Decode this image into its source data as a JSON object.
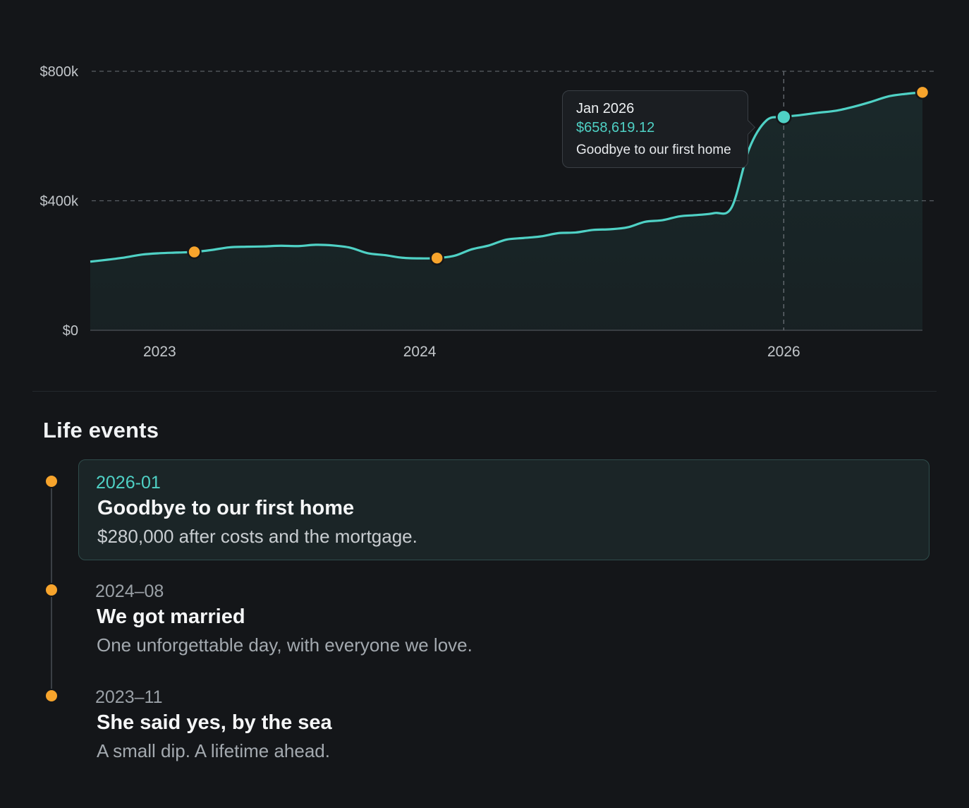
{
  "chart_data": {
    "type": "area",
    "x_start": "2022-09",
    "points": [
      [
        "2022-09",
        212000
      ],
      [
        "2022-10",
        218000
      ],
      [
        "2022-11",
        225000
      ],
      [
        "2022-12",
        234000
      ],
      [
        "2023-01",
        238000
      ],
      [
        "2023-02",
        240000
      ],
      [
        "2023-03",
        242000
      ],
      [
        "2023-04",
        248000
      ],
      [
        "2023-05",
        256000
      ],
      [
        "2023-06",
        258000
      ],
      [
        "2023-07",
        259000
      ],
      [
        "2023-08",
        261000
      ],
      [
        "2023-09",
        260000
      ],
      [
        "2023-10",
        264000
      ],
      [
        "2023-11",
        262000
      ],
      [
        "2023-12",
        255000
      ],
      [
        "2024-01",
        238000
      ],
      [
        "2024-02",
        232000
      ],
      [
        "2024-03",
        224000
      ],
      [
        "2024-04",
        222000
      ],
      [
        "2024-05",
        223000
      ],
      [
        "2024-06",
        230000
      ],
      [
        "2024-07",
        250000
      ],
      [
        "2024-08",
        262000
      ],
      [
        "2024-09",
        280000
      ],
      [
        "2024-10",
        285000
      ],
      [
        "2024-11",
        290000
      ],
      [
        "2024-12",
        300000
      ],
      [
        "2025-01",
        302000
      ],
      [
        "2025-02",
        310000
      ],
      [
        "2025-03",
        312000
      ],
      [
        "2025-04",
        318000
      ],
      [
        "2025-05",
        335000
      ],
      [
        "2025-06",
        340000
      ],
      [
        "2025-07",
        352000
      ],
      [
        "2025-08",
        356000
      ],
      [
        "2025-09",
        362000
      ],
      [
        "2025-10",
        380000
      ],
      [
        "2025-11",
        560000
      ],
      [
        "2025-12",
        648000
      ],
      [
        "2026-01",
        658619.12
      ],
      [
        "2026-02",
        665000
      ],
      [
        "2026-03",
        672000
      ],
      [
        "2026-04",
        678000
      ],
      [
        "2026-05",
        690000
      ],
      [
        "2026-06",
        705000
      ],
      [
        "2026-07",
        722000
      ],
      [
        "2026-08",
        730000
      ],
      [
        "2026-09",
        735000
      ]
    ],
    "x_ticks": [
      "2023",
      "2024",
      "2026"
    ],
    "y_ticks": [
      "$0",
      "$400k",
      "$800k"
    ],
    "ylim": [
      0,
      800000
    ],
    "grid": "dashed horizontal",
    "line_color": "#4fd1c5",
    "marker_color": "#f7a42c",
    "markers": [
      "2023-03",
      "2024-05",
      "2026-09"
    ],
    "highlight": "2026-01",
    "tooltip": {
      "date": "Jan 2026",
      "value": "$658,619.12",
      "label": "Goodbye to our first home"
    }
  },
  "events": {
    "title": "Life events",
    "items": [
      {
        "date": "2026-01",
        "title": "Goodbye to our first home",
        "desc": "$280,000 after costs and the mortgage.",
        "active": true
      },
      {
        "date": "2024–08",
        "title": "We got married",
        "desc": "One unforgettable day, with everyone we love.",
        "active": false
      },
      {
        "date": "2023–11",
        "title": "She said yes, by the sea",
        "desc": "A small dip. A lifetime ahead.",
        "active": false
      }
    ]
  },
  "colors": {
    "background": "#141619",
    "accent": "#4fd1c5",
    "marker": "#f7a42c"
  }
}
